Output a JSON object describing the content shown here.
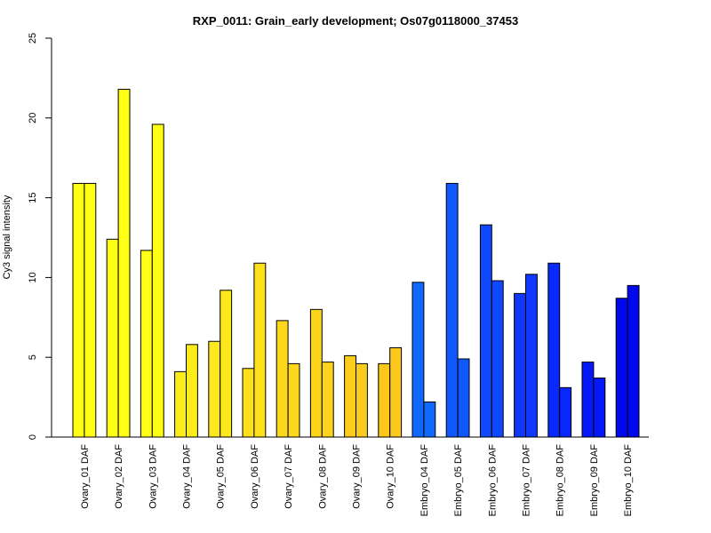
{
  "chart_data": {
    "type": "bar",
    "title": "RXP_0011: Grain_early development; Os07g0118000_37453",
    "xlabel": "",
    "ylabel": "Cy3 signal intensity",
    "ylim": [
      0,
      25
    ],
    "yticks": [
      0,
      5,
      10,
      15,
      20,
      25
    ],
    "grid": false,
    "categories": [
      "Ovary_01 DAF",
      "Ovary_02 DAF",
      "Ovary_03 DAF",
      "Ovary_04 DAF",
      "Ovary_05 DAF",
      "Ovary_06 DAF",
      "Ovary_07 DAF",
      "Ovary_08 DAF",
      "Ovary_09 DAF",
      "Ovary_10 DAF",
      "Embryo_04 DAF",
      "Embryo_05 DAF",
      "Embryo_06 DAF",
      "Embryo_07 DAF",
      "Embryo_08 DAF",
      "Embryo_09 DAF",
      "Embryo_10 DAF"
    ],
    "series": [
      {
        "values": [
          15.9,
          12.4,
          11.7,
          4.1,
          6.0,
          4.3,
          7.3,
          8.0,
          5.1,
          4.6,
          9.7,
          15.9,
          13.3,
          9.0,
          10.9,
          4.7,
          8.7
        ]
      },
      {
        "values": [
          15.9,
          21.8,
          19.6,
          5.8,
          9.2,
          10.9,
          4.6,
          4.7,
          4.6,
          5.6,
          2.2,
          4.9,
          9.8,
          10.2,
          3.1,
          3.7,
          9.5
        ]
      }
    ],
    "colors": [
      "#ffff16",
      "#ffff16",
      "#ffff16",
      "#fcec1c",
      "#fce81c",
      "#fce01c",
      "#fcd81c",
      "#fcd41c",
      "#fccc1c",
      "#fcc81c",
      "#1069fc",
      "#1058fc",
      "#1048fc",
      "#1038fc",
      "#0828fc",
      "#0418f8",
      "#0008ee"
    ]
  }
}
